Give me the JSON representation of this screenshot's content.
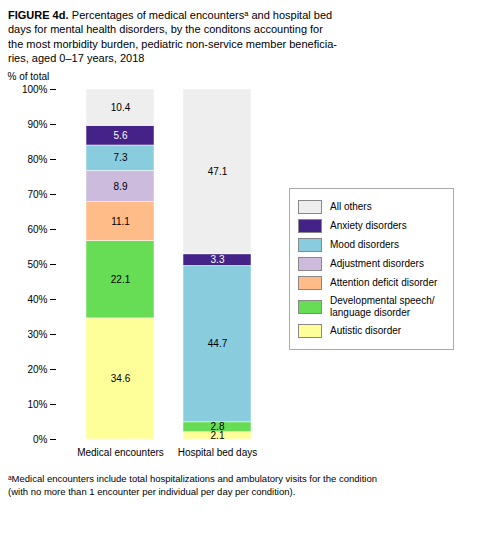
{
  "chart_data": {
    "type": "bar",
    "stacked": true,
    "data_labels": true,
    "grid": false,
    "legend": "right",
    "title": "FIGURE 4d.",
    "subtitle": "Percentages of medical encountersᵃ and hospital bed\ndays for mental health disorders, by the conditons accounting for\nthe most morbidity burden, pediatric non-service member beneficia-\nries, aged 0–17 years, 2018",
    "ylabel": "% of total",
    "footnote": "ᵃMedical encounters include total hospitalizations and ambulatory visits for the condition\n(with no more than 1 encounter per individual per day per condition).",
    "categories": [
      "Medical encounters",
      "Hospital bed days"
    ],
    "series": [
      {
        "name": "Autistic disorder",
        "color": "#FFFF99",
        "values": [
          34.6,
          2.1
        ]
      },
      {
        "name": "Developmental speech/\nlanguage disorder",
        "color": "#66DD55",
        "values": [
          22.1,
          2.8
        ]
      },
      {
        "name": "Attention deficit disorder",
        "color": "#FFBB88",
        "values": [
          11.1,
          0.0
        ]
      },
      {
        "name": "Adjustment disorders",
        "color": "#CCBBDD",
        "values": [
          8.9,
          0.0
        ]
      },
      {
        "name": "Mood disorders",
        "color": "#88CCDD",
        "values": [
          7.3,
          44.7
        ]
      },
      {
        "name": "Anxiety disorders",
        "color": "#442288",
        "values": [
          5.6,
          3.3
        ]
      },
      {
        "name": "All others",
        "color": "#EEEEEE",
        "values": [
          10.4,
          47.1
        ]
      }
    ],
    "ylim": [
      0,
      100
    ],
    "yticks": [
      {
        "value": 0,
        "label": "0%"
      },
      {
        "value": 10,
        "label": "10%"
      },
      {
        "value": 20,
        "label": "20%"
      },
      {
        "value": 30,
        "label": "30%"
      },
      {
        "value": 40,
        "label": "40%"
      },
      {
        "value": 50,
        "label": "50%"
      },
      {
        "value": 60,
        "label": "60%"
      },
      {
        "value": 70,
        "label": "70%"
      },
      {
        "value": 80,
        "label": "80%"
      },
      {
        "value": 90,
        "label": "90%"
      },
      {
        "value": 100,
        "label": "100%"
      }
    ]
  }
}
